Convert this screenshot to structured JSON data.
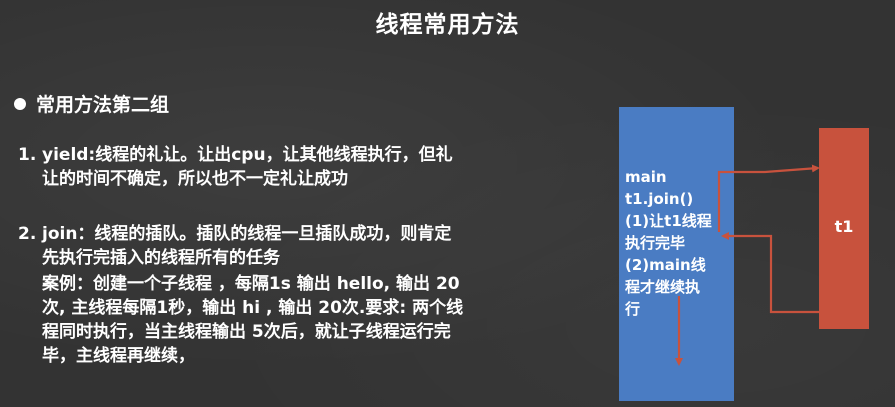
{
  "slide": {
    "title": "线程常用方法",
    "section_heading": "常用方法第二组",
    "items": [
      {
        "number": "1.",
        "line1": "yield:线程的礼让。让出cpu，让其他线程执行，但礼",
        "line2": "让的时间不确定，所以也不一定礼让成功"
      },
      {
        "number": "2.",
        "line1": "join：线程的插队。插队的线程一旦插队成功，则肯定",
        "line2": "先执行完插入的线程所有的任务"
      }
    ],
    "example": {
      "line1": "案例：创建一个子线程 ，每隔1s 输出 hello, 输出 20",
      "line2": "次, 主线程每隔1秒，输出 hi , 输出 20次.要求: 两个线",
      "line3": "程同时执行，当主线程输出 5次后，就让子线程运行完",
      "line4": "毕，主线程再继续，"
    }
  },
  "diagram": {
    "main_box": {
      "lines": [
        "main",
        "t1.join()",
        "(1)让t1线程",
        "执行完毕",
        "(2)main线",
        "程才继续执",
        "行"
      ],
      "color": "#4a7cc3"
    },
    "t1_box": {
      "label": "t1",
      "color": "#c8523d"
    },
    "arrow_color": "#c8523d"
  }
}
